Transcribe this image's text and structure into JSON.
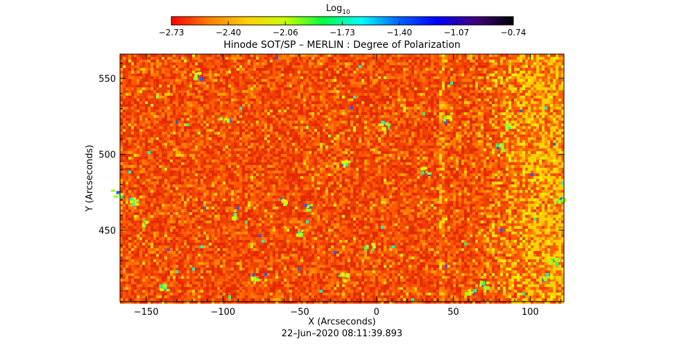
{
  "chart_data": {
    "type": "heatmap",
    "title": "Hinode SOT/SP – MERLIN : Degree of Polarization",
    "xlabel": "X (Arcseconds)",
    "ylabel": "Y (Arcseconds)",
    "timestamp": "22–Jun–2020 08:11:39.893",
    "colorbar": {
      "label_base": "Log",
      "label_sub": "10",
      "ticks": [
        "−2.73",
        "−2.40",
        "−2.06",
        "−1.73",
        "−1.40",
        "−1.07",
        "−0.74"
      ],
      "range": [
        -2.73,
        -0.74
      ],
      "colors": [
        "#ff0000",
        "#ff7f00",
        "#ffd000",
        "#c8ff00",
        "#00ff40",
        "#00ffff",
        "#0060ff",
        "#0000ff",
        "#400080",
        "#000000"
      ]
    },
    "xlim": [
      -167,
      122
    ],
    "ylim": [
      403,
      566
    ],
    "xticks": [
      {
        "value": -150,
        "label": "−150"
      },
      {
        "value": -100,
        "label": "−100"
      },
      {
        "value": -50,
        "label": "−50"
      },
      {
        "value": 0,
        "label": "0"
      },
      {
        "value": 50,
        "label": "50"
      },
      {
        "value": 100,
        "label": "100"
      }
    ],
    "yticks": [
      {
        "value": 450,
        "label": "450"
      },
      {
        "value": 500,
        "label": "500"
      },
      {
        "value": 550,
        "label": "550"
      }
    ],
    "field_colors": [
      "#e52a00",
      "#f04000",
      "#ff5a00",
      "#ff7a00",
      "#ffa000",
      "#ffd000",
      "#e8f000",
      "#a0ff20",
      "#20ff80",
      "#00ffd8",
      "#2060ff"
    ],
    "bright_strip_x": 42,
    "bright_region_x": [
      62,
      122
    ]
  }
}
